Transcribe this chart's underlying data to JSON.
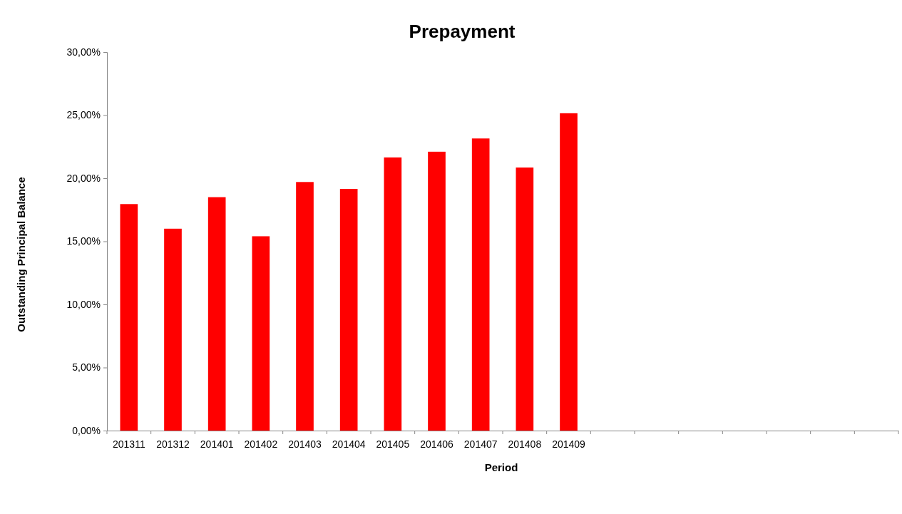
{
  "chart_data": {
    "type": "bar",
    "title": "Prepayment",
    "xlabel": "Period",
    "ylabel": "Outstanding Principal Balance",
    "categories": [
      "201311",
      "201312",
      "201401",
      "201402",
      "201403",
      "201404",
      "201405",
      "201406",
      "201407",
      "201408",
      "201409",
      null,
      null,
      null,
      null,
      null,
      null,
      null
    ],
    "values": [
      17.95,
      16.0,
      18.5,
      15.4,
      19.7,
      19.15,
      21.65,
      22.1,
      23.15,
      20.85,
      25.15,
      null,
      null,
      null,
      null,
      null,
      null,
      null
    ],
    "color": "#ff0000",
    "ylim": [
      0,
      30
    ],
    "yticks": [
      {
        "value": 0,
        "label": "0,00%"
      },
      {
        "value": 5,
        "label": "5,00%"
      },
      {
        "value": 10,
        "label": "10,00%"
      },
      {
        "value": 15,
        "label": "15,00%"
      },
      {
        "value": 20,
        "label": "20,00%"
      },
      {
        "value": 25,
        "label": "25,00%"
      },
      {
        "value": 30,
        "label": "30,00%"
      }
    ],
    "grid": false
  }
}
